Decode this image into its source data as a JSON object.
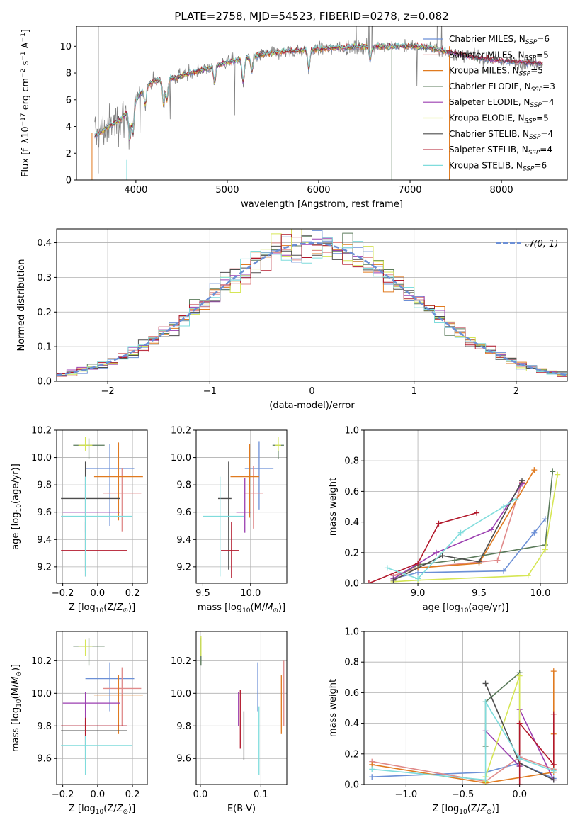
{
  "title": "PLATE=2758, MJD=54523, FIBERID=0278, z=0.082",
  "colors": {
    "Chabrier MILES": "#6b8fd6",
    "Salpeter MILES": "#e08a8a",
    "Kroupa MILES": "#e07a1f",
    "Chabrier ELODIE": "#5a7a5a",
    "Salpeter ELODIE": "#9b3fb0",
    "Kroupa ELODIE": "#d6e655",
    "Chabrier STELIB": "#4d4d4d",
    "Salpeter STELIB": "#b2182b",
    "Kroupa STELIB": "#7fdcdc"
  },
  "chart_data": [
    {
      "id": "spectrum",
      "type": "line",
      "xlabel": "wavelength [Angstrom, rest frame]",
      "ylabel": "Flux [f_λ10^-17 erg cm^-2 s^-1 A^-1]",
      "xlim": [
        3350,
        8720
      ],
      "ylim": [
        0,
        11.5
      ],
      "xticks": [
        "4000",
        "5000",
        "6000",
        "7000",
        "8000"
      ],
      "yticks": [
        "0",
        "2",
        "4",
        "6",
        "8",
        "10"
      ],
      "grid": false,
      "legend_position": "right",
      "legend": [
        {
          "name": "Chabrier MILES",
          "nssp": "6"
        },
        {
          "name": "Salpeter MILES",
          "nssp": "5"
        },
        {
          "name": "Kroupa MILES",
          "nssp": "5"
        },
        {
          "name": "Chabrier ELODIE",
          "nssp": "3"
        },
        {
          "name": "Salpeter ELODIE",
          "nssp": "4"
        },
        {
          "name": "Kroupa ELODIE",
          "nssp": "5"
        },
        {
          "name": "Chabrier STELIB",
          "nssp": "4"
        },
        {
          "name": "Salpeter STELIB",
          "nssp": "4"
        },
        {
          "name": "Kroupa STELIB",
          "nssp": "6"
        }
      ],
      "data_continuum": {
        "x": [
          3550,
          3700,
          3850,
          4000,
          4100,
          4200,
          4400,
          4600,
          4800,
          5000,
          5200,
          5400,
          5600,
          5800,
          6000,
          6200,
          6400,
          6600,
          6800,
          7000,
          7200,
          7400,
          7600,
          7800,
          8000,
          8200,
          8450
        ],
        "y": [
          3.3,
          4.0,
          4.6,
          6.0,
          7.0,
          7.4,
          7.6,
          8.0,
          8.4,
          8.8,
          9.1,
          9.4,
          9.6,
          9.7,
          9.8,
          9.9,
          9.95,
          10.0,
          10.0,
          10.0,
          9.9,
          9.6,
          9.3,
          9.1,
          8.9,
          8.8,
          8.7
        ]
      }
    },
    {
      "id": "residual-histogram",
      "type": "line",
      "xlabel": "(data-model)/error",
      "ylabel": "Normed distribution",
      "xlim": [
        -2.5,
        2.5
      ],
      "ylim": [
        0,
        0.44
      ],
      "xticks": [
        "−2",
        "−1",
        "0",
        "1",
        "2"
      ],
      "yticks": [
        "0.0",
        "0.1",
        "0.2",
        "0.3",
        "0.4"
      ],
      "grid": true,
      "legend_position": "top-right",
      "gaussian_label": "𝒩(0, 1)"
    },
    {
      "id": "age-vs-Z",
      "type": "scatter",
      "xlabel": "Z [log10(Z/Z⊙)]",
      "ylabel": "age [log10(age/yr)]",
      "xlim": [
        -0.235,
        0.285
      ],
      "ylim": [
        9.08,
        10.2
      ],
      "xticks": [
        "−0.2",
        "0.0",
        "0.2"
      ],
      "yticks": [
        "9.2",
        "9.4",
        "9.6",
        "9.8",
        "10.0",
        "10.2"
      ],
      "grid": true,
      "points": [
        {
          "model": "Chabrier MILES",
          "x": 0.07,
          "y": 9.92,
          "xerr": [
            0.14,
            0.14
          ],
          "yerr": [
            0.42,
            0.18
          ]
        },
        {
          "model": "Salpeter MILES",
          "x": 0.14,
          "y": 9.74,
          "xerr": [
            0.11,
            0.11
          ],
          "yerr": [
            0.28,
            0.18
          ]
        },
        {
          "model": "Kroupa MILES",
          "x": 0.12,
          "y": 9.86,
          "xerr": [
            0.14,
            0.14
          ],
          "yerr": [
            0.32,
            0.25
          ]
        },
        {
          "model": "Chabrier ELODIE",
          "x": -0.05,
          "y": 10.09,
          "xerr": [
            0.09,
            0.09
          ],
          "yerr": [
            0.1,
            0.05
          ]
        },
        {
          "model": "Salpeter ELODIE",
          "x": -0.07,
          "y": 9.6,
          "xerr": [
            0.13,
            0.2
          ],
          "yerr": [
            0.15,
            0.25
          ]
        },
        {
          "model": "Kroupa ELODIE",
          "x": -0.07,
          "y": 10.09,
          "xerr": [
            0.04,
            0.04
          ],
          "yerr": [
            0.04,
            0.06
          ]
        },
        {
          "model": "Chabrier STELIB",
          "x": -0.07,
          "y": 9.7,
          "xerr": [
            0.14,
            0.2
          ],
          "yerr": [
            0.53,
            0.27
          ]
        },
        {
          "model": "Salpeter STELIB",
          "x": -0.07,
          "y": 9.32,
          "xerr": [
            0.14,
            0.24
          ],
          "yerr": [
            0.19,
            0.21
          ]
        },
        {
          "model": "Kroupa STELIB",
          "x": -0.07,
          "y": 9.57,
          "xerr": [
            0.14,
            0.27
          ],
          "yerr": [
            0.44,
            0.29
          ]
        }
      ]
    },
    {
      "id": "age-vs-mass",
      "type": "scatter",
      "xlabel": "mass [log10(M/M⊙)]",
      "ylabel": "",
      "xlim": [
        9.43,
        10.38
      ],
      "ylim": [
        9.08,
        10.2
      ],
      "xticks": [
        "9.5",
        "10.0"
      ],
      "yticks": [
        "9.2",
        "9.4",
        "9.6",
        "9.8",
        "10.0",
        "10.2"
      ],
      "grid": true,
      "points": [
        {
          "model": "Chabrier MILES",
          "x": 10.09,
          "y": 9.92,
          "xerr": [
            0.15,
            0.15
          ],
          "yerr": [
            0.3,
            0.2
          ]
        },
        {
          "model": "Salpeter MILES",
          "x": 10.03,
          "y": 9.74,
          "xerr": [
            0.1,
            0.1
          ],
          "yerr": [
            0.26,
            0.2
          ]
        },
        {
          "model": "Kroupa MILES",
          "x": 9.99,
          "y": 9.86,
          "xerr": [
            0.2,
            0.1
          ],
          "yerr": [
            0.3,
            0.24
          ]
        },
        {
          "model": "Chabrier ELODIE",
          "x": 10.29,
          "y": 10.09,
          "xerr": [
            0.06,
            0.06
          ],
          "yerr": [
            0.1,
            0.05
          ]
        },
        {
          "model": "Salpeter ELODIE",
          "x": 9.94,
          "y": 9.6,
          "xerr": [
            0.09,
            0.06
          ],
          "yerr": [
            0.15,
            0.25
          ]
        },
        {
          "model": "Kroupa ELODIE",
          "x": 10.29,
          "y": 10.09,
          "xerr": [
            0.03,
            0.03
          ],
          "yerr": [
            0.04,
            0.06
          ]
        },
        {
          "model": "Chabrier STELIB",
          "x": 9.77,
          "y": 9.7,
          "xerr": [
            0.11,
            0.03
          ],
          "yerr": [
            0.52,
            0.27
          ]
        },
        {
          "model": "Salpeter STELIB",
          "x": 9.8,
          "y": 9.32,
          "xerr": [
            0.11,
            0.08
          ],
          "yerr": [
            0.2,
            0.21
          ]
        },
        {
          "model": "Kroupa STELIB",
          "x": 9.68,
          "y": 9.57,
          "xerr": [
            0.18,
            0.25
          ],
          "yerr": [
            0.44,
            0.29
          ]
        }
      ]
    },
    {
      "id": "mass-weight-vs-age",
      "type": "line",
      "xlabel": "age [log10(age/yr)]",
      "ylabel": "mass weight",
      "xlim": [
        8.56,
        10.22
      ],
      "ylim": [
        0,
        1.0
      ],
      "xticks": [
        "9.0",
        "9.5",
        "10.0"
      ],
      "yticks": [
        "0.0",
        "0.2",
        "0.4",
        "0.6",
        "0.8",
        "1.0"
      ],
      "grid": true,
      "series": [
        {
          "model": "Chabrier MILES",
          "x": [
            8.8,
            9.0,
            9.7,
            9.95,
            10.04
          ],
          "y": [
            0.03,
            0.07,
            0.08,
            0.33,
            0.42
          ]
        },
        {
          "model": "Salpeter MILES",
          "x": [
            8.8,
            9.0,
            9.65,
            9.85
          ],
          "y": [
            0.05,
            0.1,
            0.15,
            0.66
          ]
        },
        {
          "model": "Kroupa MILES",
          "x": [
            8.8,
            9.0,
            9.5,
            9.95
          ],
          "y": [
            0.02,
            0.1,
            0.13,
            0.74
          ]
        },
        {
          "model": "Chabrier ELODIE",
          "x": [
            8.8,
            9.0,
            9.3,
            10.04,
            10.1
          ],
          "y": [
            0.03,
            0.12,
            0.15,
            0.25,
            0.73
          ]
        },
        {
          "model": "Salpeter ELODIE",
          "x": [
            8.8,
            9.15,
            9.6,
            9.85
          ],
          "y": [
            0.03,
            0.2,
            0.35,
            0.65
          ]
        },
        {
          "model": "Kroupa ELODIE",
          "x": [
            8.8,
            9.0,
            9.9,
            10.04,
            10.14
          ],
          "y": [
            0.01,
            0.02,
            0.05,
            0.22,
            0.71
          ]
        },
        {
          "model": "Chabrier STELIB",
          "x": [
            8.8,
            9.2,
            9.5,
            9.85
          ],
          "y": [
            0.02,
            0.18,
            0.14,
            0.67
          ]
        },
        {
          "model": "Salpeter STELIB",
          "x": [
            8.6,
            9.0,
            9.17,
            9.48
          ],
          "y": [
            0.0,
            0.13,
            0.39,
            0.46
          ]
        },
        {
          "model": "Kroupa STELIB",
          "x": [
            8.75,
            9.0,
            9.35,
            9.7,
            9.8
          ],
          "y": [
            0.1,
            0.03,
            0.33,
            0.5,
            0.55
          ]
        }
      ]
    },
    {
      "id": "mass-vs-Z",
      "type": "scatter",
      "xlabel": "Z [log10(Z/Z⊙)]",
      "ylabel": "mass [log10(M/M⊙)]",
      "xlim": [
        -0.235,
        0.285
      ],
      "ylim": [
        9.44,
        10.38
      ],
      "xticks": [
        "−0.2",
        "0.0",
        "0.2"
      ],
      "yticks": [
        "9.6",
        "9.8",
        "10.0",
        "10.2"
      ],
      "grid": true,
      "points": [
        {
          "model": "Chabrier MILES",
          "x": 0.07,
          "y": 10.09,
          "xerr": [
            0.14,
            0.14
          ],
          "yerr": [
            0.2,
            0.1
          ]
        },
        {
          "model": "Salpeter MILES",
          "x": 0.14,
          "y": 10.03,
          "xerr": [
            0.11,
            0.11
          ],
          "yerr": [
            0.23,
            0.13
          ]
        },
        {
          "model": "Kroupa MILES",
          "x": 0.12,
          "y": 9.99,
          "xerr": [
            0.14,
            0.14
          ],
          "yerr": [
            0.24,
            0.12
          ]
        },
        {
          "model": "Chabrier ELODIE",
          "x": -0.05,
          "y": 10.29,
          "xerr": [
            0.09,
            0.09
          ],
          "yerr": [
            0.12,
            0.05
          ]
        },
        {
          "model": "Salpeter ELODIE",
          "x": -0.07,
          "y": 9.94,
          "xerr": [
            0.13,
            0.2
          ],
          "yerr": [
            0.14,
            0.07
          ]
        },
        {
          "model": "Kroupa ELODIE",
          "x": -0.07,
          "y": 10.29,
          "xerr": [
            0.04,
            0.04
          ],
          "yerr": [
            0.06,
            0.04
          ]
        },
        {
          "model": "Chabrier STELIB",
          "x": -0.07,
          "y": 9.77,
          "xerr": [
            0.14,
            0.24
          ],
          "yerr": [
            0.18,
            0.06
          ]
        },
        {
          "model": "Salpeter STELIB",
          "x": -0.07,
          "y": 9.8,
          "xerr": [
            0.14,
            0.24
          ],
          "yerr": [
            0.14,
            0.05
          ]
        },
        {
          "model": "Kroupa STELIB",
          "x": -0.07,
          "y": 9.68,
          "xerr": [
            0.14,
            0.27
          ],
          "yerr": [
            0.18,
            0.06
          ]
        }
      ]
    },
    {
      "id": "mass-vs-EBV",
      "type": "scatter",
      "xlabel": "E(B-V)",
      "ylabel": "",
      "xlim": [
        -0.007,
        0.143
      ],
      "ylim": [
        9.44,
        10.38
      ],
      "xticks": [
        "0.0",
        "0.1"
      ],
      "yticks": [
        "9.6",
        "9.8",
        "10.0",
        "10.2"
      ],
      "grid": true,
      "points": [
        {
          "model": "Chabrier MILES",
          "x": 0.095,
          "y": 10.09,
          "xerr": [
            0,
            0
          ],
          "yerr": [
            0.2,
            0.1
          ]
        },
        {
          "model": "Salpeter MILES",
          "x": 0.138,
          "y": 10.03,
          "xerr": [
            0,
            0
          ],
          "yerr": [
            0.23,
            0.17
          ]
        },
        {
          "model": "Kroupa MILES",
          "x": 0.134,
          "y": 9.99,
          "xerr": [
            0,
            0
          ],
          "yerr": [
            0.24,
            0.12
          ]
        },
        {
          "model": "Chabrier ELODIE",
          "x": 0.001,
          "y": 10.29,
          "xerr": [
            0,
            0
          ],
          "yerr": [
            0.12,
            0.05
          ]
        },
        {
          "model": "Salpeter ELODIE",
          "x": 0.063,
          "y": 9.94,
          "xerr": [
            0,
            0
          ],
          "yerr": [
            0.14,
            0.07
          ]
        },
        {
          "model": "Kroupa ELODIE",
          "x": 0.001,
          "y": 10.29,
          "xerr": [
            0,
            0
          ],
          "yerr": [
            0.06,
            0.06
          ]
        },
        {
          "model": "Chabrier STELIB",
          "x": 0.072,
          "y": 9.77,
          "xerr": [
            0,
            0
          ],
          "yerr": [
            0.18,
            0.12
          ]
        },
        {
          "model": "Salpeter STELIB",
          "x": 0.066,
          "y": 9.8,
          "xerr": [
            0,
            0
          ],
          "yerr": [
            0.14,
            0.22
          ]
        },
        {
          "model": "Kroupa STELIB",
          "x": 0.097,
          "y": 9.68,
          "xerr": [
            0,
            0
          ],
          "yerr": [
            0.18,
            0.24
          ]
        }
      ]
    },
    {
      "id": "mass-weight-vs-Z",
      "type": "line",
      "xlabel": "Z [log10(Z/Z⊙)]",
      "ylabel": "mass weight",
      "xlim": [
        -1.37,
        0.42
      ],
      "ylim": [
        0,
        1.0
      ],
      "xticks": [
        "−1.0",
        "−0.5",
        "0.0"
      ],
      "yticks": [
        "0.0",
        "0.2",
        "0.4",
        "0.6",
        "0.8",
        "1.0"
      ],
      "grid": true,
      "series": [
        {
          "model": "Chabrier MILES",
          "x": [
            -1.3,
            -0.3,
            0.0,
            0.3
          ],
          "y": [
            0.05,
            0.08,
            0.14,
            0.04
          ]
        },
        {
          "model": "Salpeter MILES",
          "x": [
            -1.3,
            -0.3,
            0.0,
            0.3
          ],
          "y": [
            0.15,
            0.02,
            0.18,
            0.1
          ]
        },
        {
          "model": "Kroupa MILES",
          "x": [
            -1.3,
            -0.3,
            0.3,
            0.3,
            0.3
          ],
          "y": [
            0.13,
            0.01,
            0.08,
            0.33,
            0.74
          ]
        },
        {
          "model": "Chabrier ELODIE",
          "x": [
            -0.3,
            -0.3,
            0.0,
            0.0
          ],
          "y": [
            0.25,
            0.54,
            0.73,
            0.12
          ]
        },
        {
          "model": "Salpeter ELODIE",
          "x": [
            -0.3,
            0.0,
            0.0,
            0.3
          ],
          "y": [
            0.35,
            0.12,
            0.49,
            0.03
          ]
        },
        {
          "model": "Kroupa ELODIE",
          "x": [
            -0.3,
            -0.3,
            0.0,
            0.0
          ],
          "y": [
            0.02,
            0.05,
            0.71,
            0.22
          ]
        },
        {
          "model": "Chabrier STELIB",
          "x": [
            -0.3,
            0.0,
            0.3
          ],
          "y": [
            0.66,
            0.14,
            0.03
          ]
        },
        {
          "model": "Salpeter STELIB",
          "x": [
            0.0,
            0.0,
            0.3,
            0.3
          ],
          "y": [
            0.0,
            0.4,
            0.13,
            0.46
          ]
        },
        {
          "model": "Kroupa STELIB",
          "x": [
            -1.3,
            -0.3,
            -0.3,
            0.0,
            0.3
          ],
          "y": [
            0.1,
            0.03,
            0.54,
            0.17,
            0.09
          ]
        }
      ]
    }
  ]
}
